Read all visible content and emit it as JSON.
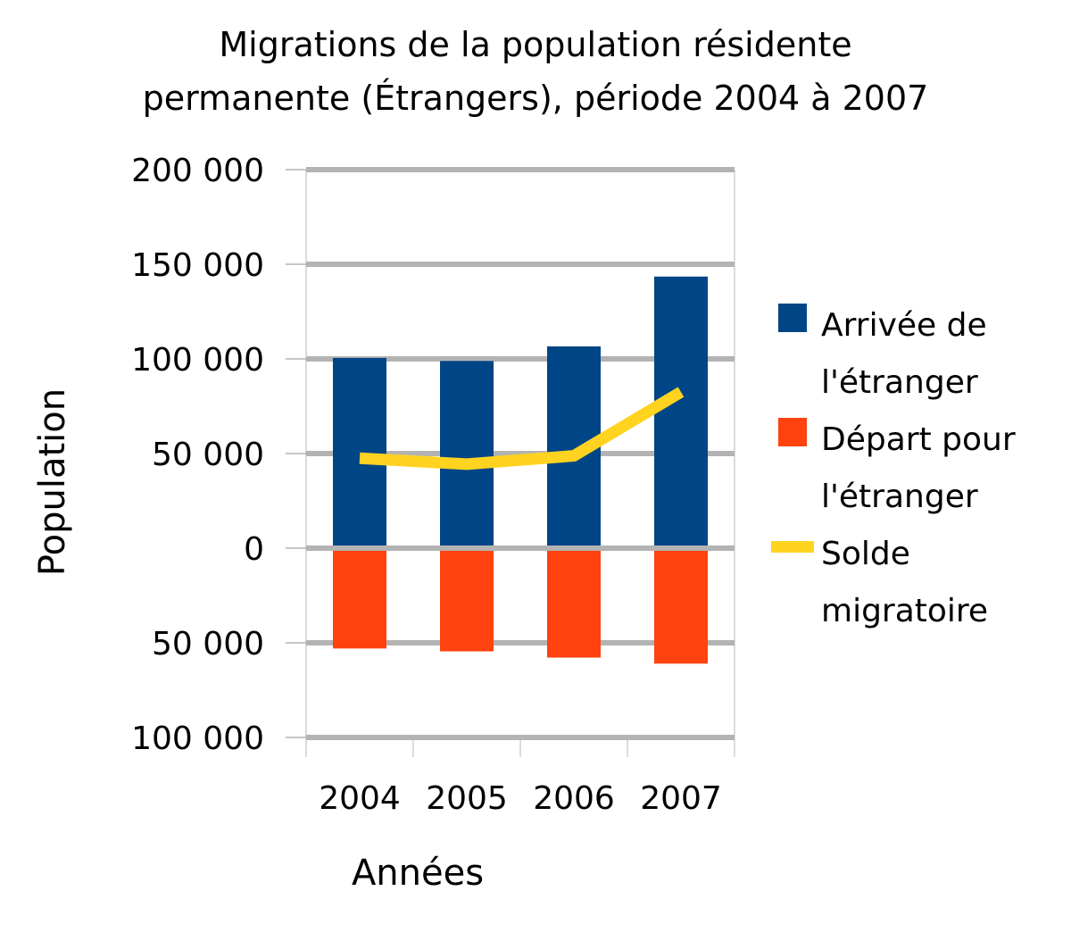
{
  "chart_data": {
    "type": "bar",
    "title_lines": [
      "Migrations de la population résidente",
      "permanente (Étrangers), période 2004 à 2007"
    ],
    "xlabel": "Années",
    "ylabel": "Population",
    "categories": [
      "2004",
      "2005",
      "2006",
      "2007"
    ],
    "y_ticks": [
      {
        "value": 200000,
        "label": "200 000"
      },
      {
        "value": 150000,
        "label": "150 000"
      },
      {
        "value": 100000,
        "label": "100 000"
      },
      {
        "value": 50000,
        "label": "50 000"
      },
      {
        "value": 0,
        "label": "0"
      },
      {
        "value": -50000,
        "label": "50 000"
      },
      {
        "value": -100000,
        "label": "100 000"
      }
    ],
    "ylim": [
      -100000,
      200000
    ],
    "grid": true,
    "stacked": true,
    "legend_position": "right",
    "series": [
      {
        "name": "Arrivée de l'étranger",
        "legend_lines": [
          "Arrivée de",
          "l'étranger"
        ],
        "type": "bar",
        "color": "#004586",
        "values": [
          100500,
          98900,
          106600,
          143500
        ]
      },
      {
        "name": "Départ pour l'étranger",
        "legend_lines": [
          "Départ pour",
          "l'étranger"
        ],
        "type": "bar",
        "color": "#ff420e",
        "values": [
          -53000,
          -54500,
          -57800,
          -61000
        ]
      },
      {
        "name": "Solde migratoire",
        "legend_lines": [
          "Solde",
          "migratoire"
        ],
        "type": "line",
        "color": "#ffd320",
        "values": [
          47500,
          44400,
          48800,
          82500
        ]
      }
    ]
  }
}
